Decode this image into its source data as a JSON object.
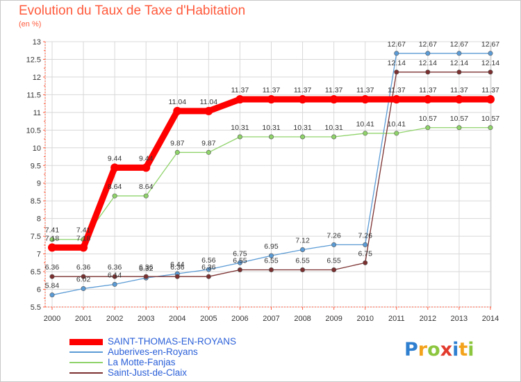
{
  "chart_data": {
    "type": "line",
    "title": "Evolution du Taux de Taxe d'Habitation",
    "subtitle": "(en %)",
    "x": [
      "2000",
      "2001",
      "2002",
      "2003",
      "2004",
      "2005",
      "2006",
      "2007",
      "2008",
      "2009",
      "2010",
      "2011",
      "2012",
      "2013",
      "2014"
    ],
    "ylim": [
      5.5,
      13
    ],
    "yticks": [
      "5.5",
      "6",
      "6.5",
      "7",
      "7.5",
      "8",
      "8.5",
      "9",
      "9.5",
      "10",
      "10.5",
      "11",
      "11.5",
      "12",
      "12.5",
      "13"
    ],
    "grid": true,
    "legend_position": "bottom-left",
    "series": [
      {
        "name": "SAINT-THOMAS-EN-ROYANS",
        "color": "#ff0000",
        "values": [
          7.18,
          7.18,
          9.44,
          9.44,
          11.04,
          11.04,
          11.37,
          11.37,
          11.37,
          11.37,
          11.37,
          11.37,
          11.37,
          11.37,
          11.37
        ],
        "labels": [
          "7.18",
          "7.18",
          "9.44",
          "9.44",
          "11.04",
          "11.04",
          "11.37",
          "11.37",
          "11.37",
          "11.37",
          "11.37",
          "11.37",
          "11.37",
          "11.37",
          "11.37"
        ]
      },
      {
        "name": "Auberives-en-Royans",
        "color": "#5b9bd5",
        "values": [
          5.84,
          6.02,
          6.14,
          6.32,
          6.44,
          6.56,
          6.75,
          6.95,
          7.12,
          7.26,
          7.26,
          12.67,
          12.67,
          12.67,
          12.67
        ],
        "labels": [
          "5.84",
          "6.02",
          "6.14",
          "6.32",
          "6.44",
          "6.56",
          "6.75",
          "6.95",
          "7.12",
          "7.26",
          "7.26",
          "12.67",
          "12.67",
          "12.67",
          "12.67"
        ]
      },
      {
        "name": "La Motte-Fanjas",
        "color": "#8fd36a",
        "values": [
          7.41,
          7.41,
          8.64,
          8.64,
          9.87,
          9.87,
          10.31,
          10.31,
          10.31,
          10.31,
          10.41,
          10.41,
          10.57,
          10.57,
          10.57
        ],
        "labels": [
          "7.41",
          "7.41",
          "8.64",
          "8.64",
          "9.87",
          "9.87",
          "10.31",
          "10.31",
          "10.31",
          "10.31",
          "10.41",
          "10.41",
          "10.57",
          "10.57",
          "10.57"
        ]
      },
      {
        "name": "Saint-Just-de-Claix",
        "color": "#7b2f2f",
        "values": [
          6.36,
          6.36,
          6.36,
          6.36,
          6.36,
          6.36,
          6.55,
          6.55,
          6.55,
          6.55,
          6.75,
          12.14,
          12.14,
          12.14,
          12.14
        ],
        "labels": [
          "6.36",
          "6.36",
          "6.36",
          "6.36",
          "6.36",
          "6.36",
          "6.55",
          "6.55",
          "6.55",
          "6.55",
          "6.75",
          "12.14",
          "12.14",
          "12.14",
          "12.14"
        ]
      }
    ]
  },
  "brand": "Proxiti"
}
